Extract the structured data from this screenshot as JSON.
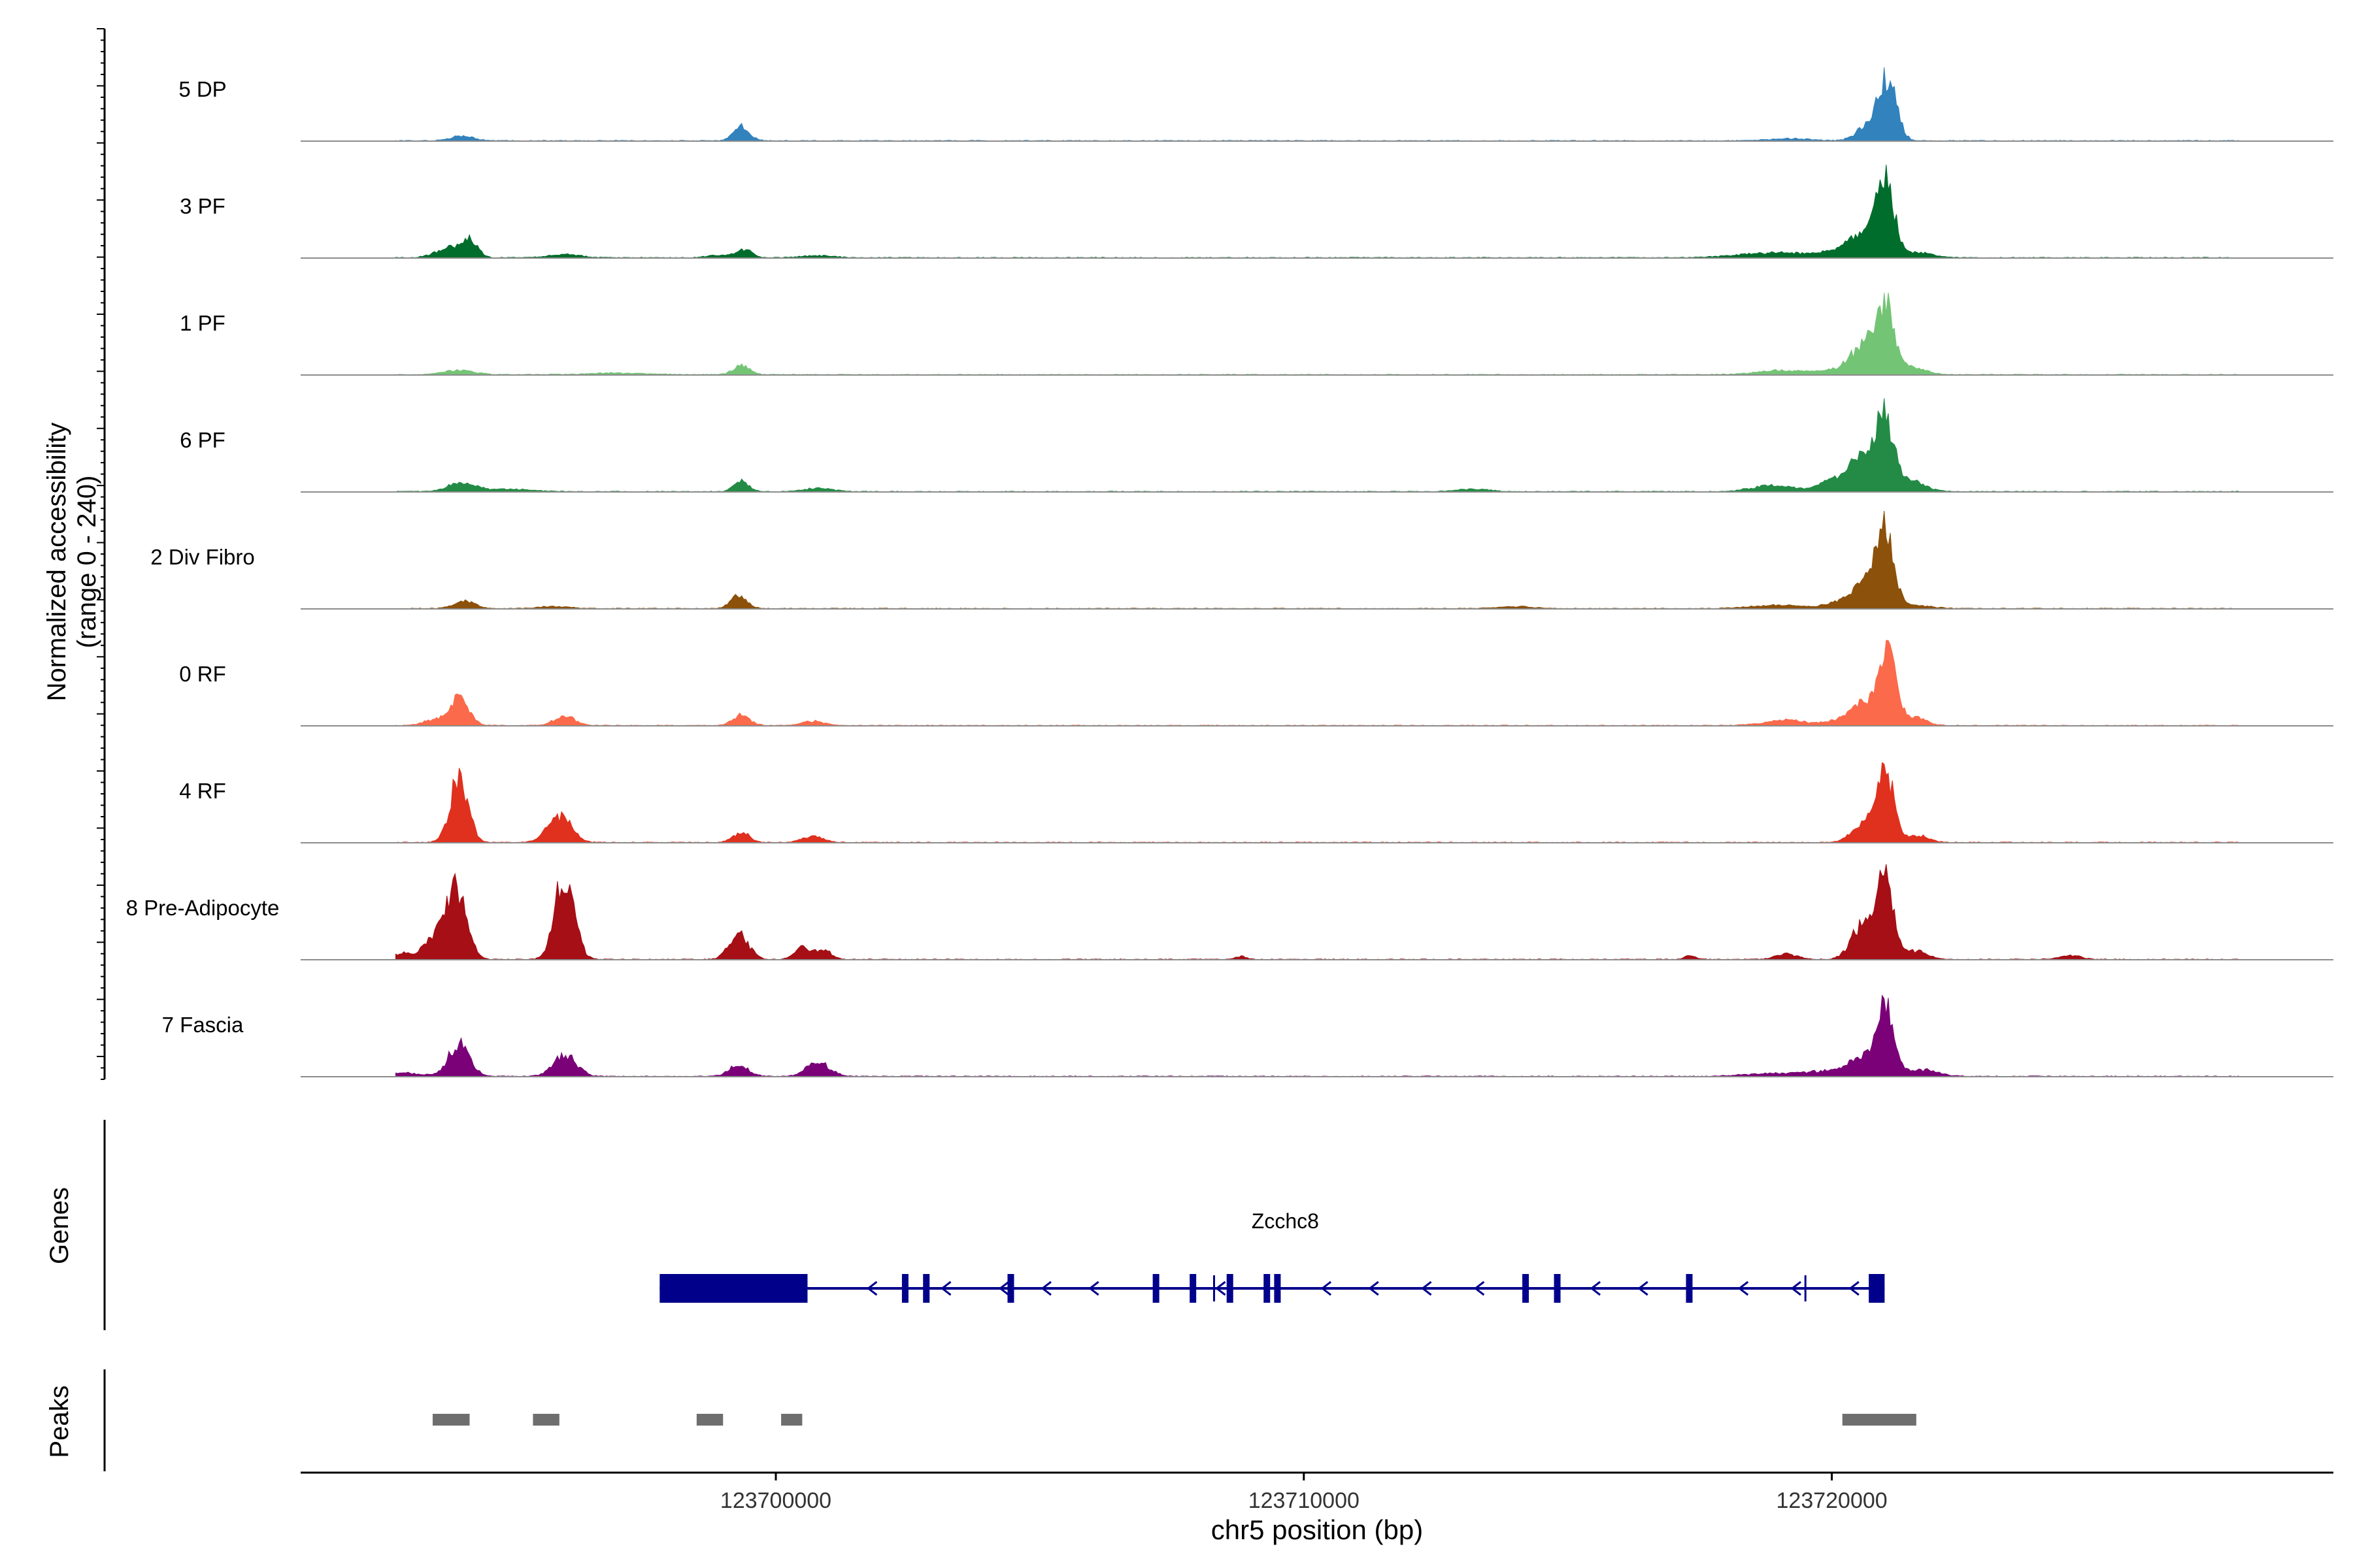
{
  "chart_data": {
    "type": "area",
    "subtype": "genome-coverage-tracks",
    "region": {
      "chromosome": "chr5",
      "start": 123691000,
      "end": 123729500
    },
    "y_label_line1": "Normalized accessibility",
    "y_label_line2": "(range 0 - 240)",
    "y_range": [
      0,
      240
    ],
    "x_label": "chr5 position (bp)",
    "x_ticks": [
      {
        "value": 123700000,
        "label": "123700000"
      },
      {
        "value": 123710000,
        "label": "123710000"
      },
      {
        "value": 123720000,
        "label": "123720000"
      }
    ],
    "tracks": [
      {
        "name": "5 DP",
        "color": "#3182bd",
        "peaks": [
          [
            123694050,
            9,
            220
          ],
          [
            123699350,
            28,
            150
          ],
          [
            123721050,
            120,
            170
          ],
          [
            123720650,
            25,
            200
          ],
          [
            123719200,
            4,
            400
          ]
        ]
      },
      {
        "name": "3 PF",
        "color": "#006d2c",
        "peaks": [
          [
            123693800,
            18,
            250
          ],
          [
            123694200,
            30,
            150
          ],
          [
            123696000,
            6,
            300
          ],
          [
            123699400,
            14,
            160
          ],
          [
            123698900,
            5,
            200
          ],
          [
            123700800,
            4,
            300
          ],
          [
            123721000,
            150,
            170
          ],
          [
            123720600,
            40,
            220
          ],
          [
            123720200,
            14,
            300
          ],
          [
            123719000,
            10,
            700
          ],
          [
            123721600,
            10,
            300
          ]
        ]
      },
      {
        "name": "1 PF",
        "color": "#74c476",
        "peaks": [
          [
            123694000,
            8,
            300
          ],
          [
            123699350,
            18,
            150
          ],
          [
            123697000,
            3,
            600
          ],
          [
            123721000,
            130,
            170
          ],
          [
            123720600,
            50,
            220
          ],
          [
            123720200,
            10,
            300
          ],
          [
            123719100,
            8,
            500
          ],
          [
            123721500,
            14,
            260
          ]
        ]
      },
      {
        "name": "6 PF",
        "color": "#238b45",
        "peaks": [
          [
            123694050,
            18,
            250
          ],
          [
            123695000,
            5,
            400
          ],
          [
            123699350,
            20,
            140
          ],
          [
            123700800,
            6,
            300
          ],
          [
            123713200,
            5,
            300
          ],
          [
            123721000,
            140,
            170
          ],
          [
            123720550,
            60,
            200
          ],
          [
            123720200,
            20,
            300
          ],
          [
            123718900,
            12,
            400
          ],
          [
            123721500,
            20,
            260
          ],
          [
            123719900,
            8,
            200
          ]
        ]
      },
      {
        "name": "2 Div Fibro",
        "color": "#8c510a",
        "peaks": [
          [
            123694100,
            14,
            200
          ],
          [
            123695800,
            4,
            300
          ],
          [
            123699300,
            26,
            150
          ],
          [
            123714000,
            4,
            300
          ],
          [
            123721000,
            140,
            170
          ],
          [
            123720650,
            40,
            220
          ],
          [
            123720250,
            14,
            300
          ],
          [
            123719000,
            6,
            500
          ],
          [
            123721600,
            6,
            300
          ]
        ]
      },
      {
        "name": "0 RF",
        "color": "#fb6a4a",
        "peaks": [
          [
            123694000,
            50,
            180
          ],
          [
            123693500,
            10,
            200
          ],
          [
            123696000,
            18,
            200
          ],
          [
            123699350,
            20,
            160
          ],
          [
            123700700,
            8,
            200
          ],
          [
            123721050,
            130,
            170
          ],
          [
            123720600,
            40,
            220
          ],
          [
            123720200,
            10,
            300
          ],
          [
            123719100,
            10,
            400
          ],
          [
            123721600,
            14,
            200
          ]
        ]
      },
      {
        "name": "4 RF",
        "color": "#e0301e",
        "peaks": [
          [
            123694000,
            125,
            170
          ],
          [
            123695900,
            50,
            220
          ],
          [
            123699350,
            18,
            160
          ],
          [
            123700700,
            12,
            200
          ],
          [
            123721000,
            138,
            170
          ],
          [
            123720550,
            30,
            200
          ],
          [
            123721650,
            12,
            200
          ]
        ]
      },
      {
        "name": "8 Pre-Adipocyte",
        "color": "#a50f15",
        "peaks": [
          [
            123693950,
            140,
            190
          ],
          [
            123693500,
            40,
            200
          ],
          [
            123696000,
            170,
            180
          ],
          [
            123692900,
            12,
            160
          ],
          [
            123699300,
            50,
            180
          ],
          [
            123700500,
            22,
            140
          ],
          [
            123700900,
            20,
            140
          ],
          [
            123708800,
            6,
            100
          ],
          [
            123721000,
            150,
            170
          ],
          [
            123720550,
            60,
            200
          ],
          [
            123719150,
            10,
            200
          ],
          [
            123721600,
            16,
            200
          ],
          [
            123724500,
            8,
            200
          ],
          [
            123717300,
            8,
            100
          ]
        ]
      },
      {
        "name": "7 Fascia",
        "color": "#7a0177",
        "peaks": [
          [
            123694000,
            60,
            200
          ],
          [
            123696000,
            40,
            220
          ],
          [
            123699300,
            22,
            180
          ],
          [
            123700800,
            26,
            220
          ],
          [
            123693000,
            6,
            300
          ],
          [
            123721000,
            126,
            170
          ],
          [
            123720550,
            30,
            220
          ],
          [
            123720000,
            10,
            500
          ],
          [
            123721700,
            12,
            300
          ],
          [
            123718800,
            5,
            500
          ]
        ]
      }
    ],
    "genes": [
      {
        "name": "Zcchc8",
        "strand": "-",
        "start": 123697800,
        "end": 123721000,
        "utr3": [
          123697800,
          123700600
        ],
        "utr5": [
          123720700,
          123721000
        ],
        "exons": [
          123702450,
          123702850,
          123704450,
          123707200,
          123707900,
          123708600,
          123709300,
          123709500,
          123714200,
          123714800,
          123717300
        ],
        "introns_arrows": [
          123701800,
          123703200,
          123704300,
          123705100,
          123706000,
          123708400,
          123710400,
          123711300,
          123712300,
          123713300,
          123715500,
          123716400,
          123718300,
          123719300,
          123720400
        ],
        "marks": [
          123708300,
          123719500
        ]
      }
    ],
    "peaks_track": [
      [
        123693500,
        123694200
      ],
      [
        123695400,
        123695900
      ],
      [
        123698500,
        123699000
      ],
      [
        123700100,
        123700500
      ],
      [
        123720200,
        123721600
      ]
    ],
    "panel_labels": {
      "genes": "Genes",
      "peaks": "Peaks"
    }
  }
}
